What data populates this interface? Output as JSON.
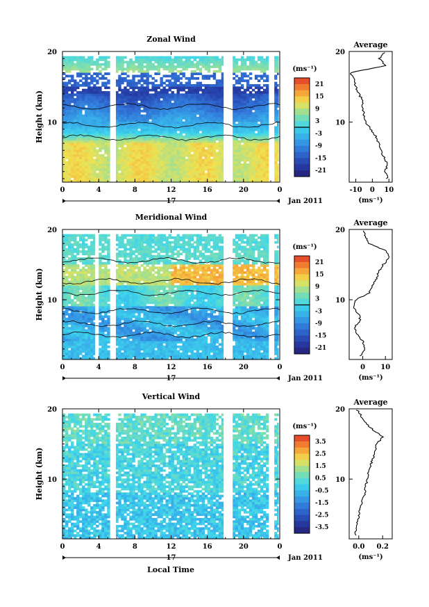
{
  "page": {
    "xlabel": "Local Time",
    "date_label": "Jan 2011",
    "day_label": "17"
  },
  "chart_data": [
    {
      "type": "heatmap",
      "title": "Zonal Wind",
      "ylabel": "Height (km)",
      "xlabel": "Local Time",
      "x_ticks": [
        "0",
        "4",
        "8",
        "12",
        "16",
        "20",
        "0"
      ],
      "y_ticks": [
        "10",
        "20"
      ],
      "ylim": [
        1.5,
        20
      ],
      "xlim": [
        0,
        24
      ],
      "colorbar": {
        "unit": "(ms⁻¹)",
        "ticks": [
          "21",
          "15",
          "9",
          "3",
          "-3",
          "-9",
          "-15",
          "-21"
        ],
        "range": [
          -24,
          24
        ],
        "zero_contour": true
      },
      "data_gaps_hours": [
        [
          5.3,
          5.9
        ],
        [
          17.8,
          18.8
        ],
        [
          22.9,
          23.4
        ],
        [
          23.9,
          24
        ]
      ],
      "profile": {
        "title": "Average",
        "xlabel": "(ms⁻¹)",
        "x_ticks": [
          "-10",
          "0",
          "10"
        ],
        "xlim": [
          -14,
          12
        ],
        "height_km": [
          2,
          3,
          4,
          5,
          6,
          7,
          8,
          9,
          10,
          11,
          12,
          13,
          14,
          15,
          16,
          17,
          18,
          19,
          20
        ],
        "values": [
          9,
          8,
          9,
          7,
          5,
          4,
          2,
          -1,
          -4,
          -5,
          -6,
          -6,
          -8,
          -10,
          -11,
          -13,
          8,
          4,
          8
        ]
      }
    },
    {
      "type": "heatmap",
      "title": "Meridional Wind",
      "ylabel": "Height (km)",
      "xlabel": "Local Time",
      "x_ticks": [
        "0",
        "4",
        "8",
        "12",
        "16",
        "20",
        "0"
      ],
      "y_ticks": [
        "10",
        "20"
      ],
      "ylim": [
        1.5,
        20
      ],
      "xlim": [
        0,
        24
      ],
      "colorbar": {
        "unit": "(ms⁻¹)",
        "ticks": [
          "21",
          "15",
          "9",
          "3",
          "-3",
          "-9",
          "-15",
          "-21"
        ],
        "range": [
          -24,
          24
        ],
        "zero_contour": true
      },
      "data_gaps_hours": [
        [
          3.6,
          4.0
        ],
        [
          5.3,
          5.9
        ],
        [
          17.8,
          18.8
        ],
        [
          22.9,
          23.4
        ],
        [
          23.9,
          24
        ]
      ],
      "profile": {
        "title": "Average",
        "xlabel": "(ms⁻¹)",
        "x_ticks": [
          "0",
          "10"
        ],
        "xlim": [
          -6,
          13
        ],
        "height_km": [
          2,
          3,
          4,
          5,
          6,
          7,
          8,
          9,
          10,
          11,
          12,
          13,
          14,
          15,
          16,
          17,
          18,
          19,
          20
        ],
        "values": [
          -1,
          1,
          0,
          -2,
          -4,
          -1,
          -2,
          -4,
          -3,
          3,
          4,
          6,
          7,
          9,
          12,
          10,
          3,
          1,
          0
        ]
      }
    },
    {
      "type": "heatmap",
      "title": "Vertical Wind",
      "ylabel": "Height (km)",
      "xlabel": "Local Time",
      "x_ticks": [
        "0",
        "4",
        "8",
        "12",
        "16",
        "20",
        "0"
      ],
      "y_ticks": [
        "10",
        "20"
      ],
      "ylim": [
        1.5,
        20
      ],
      "xlim": [
        0,
        24
      ],
      "colorbar": {
        "unit": "(ms⁻¹)",
        "ticks": [
          "3.5",
          "2.5",
          "1.5",
          "0.5",
          "-0.5",
          "-1.5",
          "-2.5",
          "-3.5"
        ],
        "range": [
          -4,
          4
        ],
        "zero_contour": false
      },
      "data_gaps_hours": [
        [
          5.3,
          5.9
        ],
        [
          17.8,
          18.8
        ],
        [
          22.9,
          23.4
        ],
        [
          23.9,
          24
        ]
      ],
      "profile": {
        "title": "Average",
        "xlabel": "(ms⁻¹)",
        "x_ticks": [
          "0.0",
          "0.2"
        ],
        "xlim": [
          -0.08,
          0.28
        ],
        "height_km": [
          2,
          3,
          4,
          5,
          6,
          7,
          8,
          9,
          10,
          11,
          12,
          13,
          14,
          15,
          16,
          17,
          18,
          19,
          20
        ],
        "values": [
          -0.03,
          -0.02,
          -0.01,
          0.0,
          0.01,
          0.03,
          0.05,
          0.06,
          0.07,
          0.08,
          0.1,
          0.12,
          0.14,
          0.15,
          0.2,
          0.12,
          0.06,
          0.02,
          -0.02
        ]
      }
    }
  ]
}
